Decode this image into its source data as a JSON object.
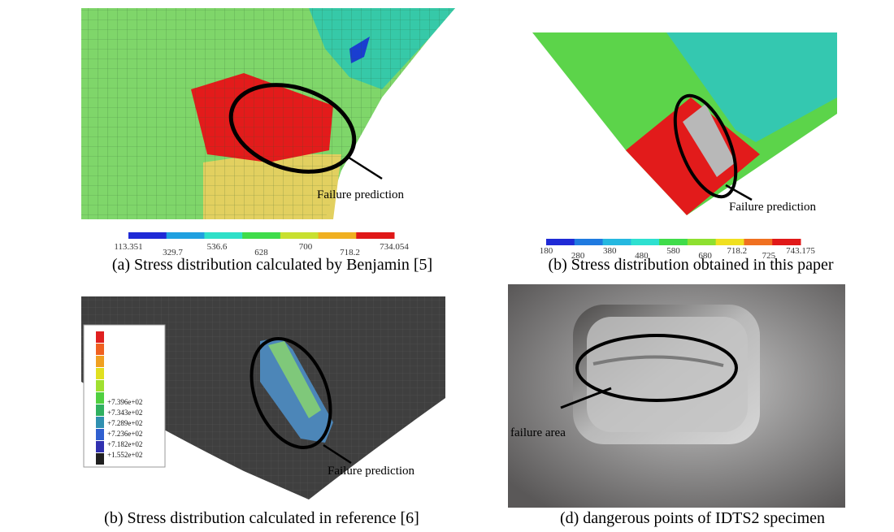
{
  "panels": [
    {
      "caption": "(a) Stress distribution calculated by Benjamin [5]",
      "annotation": "Failure prediction",
      "colorbar": [
        "113.351",
        "329.7",
        "536.6",
        "628",
        "700",
        "718.2",
        "734.054"
      ]
    },
    {
      "caption": "(b) Stress distribution obtained in this paper",
      "annotation": "Failure prediction",
      "colorbar": [
        "180",
        "280",
        "380",
        "480",
        "580",
        "680",
        "718.2",
        "725",
        "743.175"
      ]
    },
    {
      "caption": "(b) Stress distribution calculated in reference [6]",
      "annotation": "Failure prediction",
      "legend": [
        "+7.396e+02",
        "+7.343e+02",
        "+7.289e+02",
        "+7.236e+02",
        "+7.182e+02",
        "+1.552e+02"
      ]
    },
    {
      "caption": "(d) dangerous points of IDTS2 specimen",
      "annotation": "failure area"
    }
  ]
}
